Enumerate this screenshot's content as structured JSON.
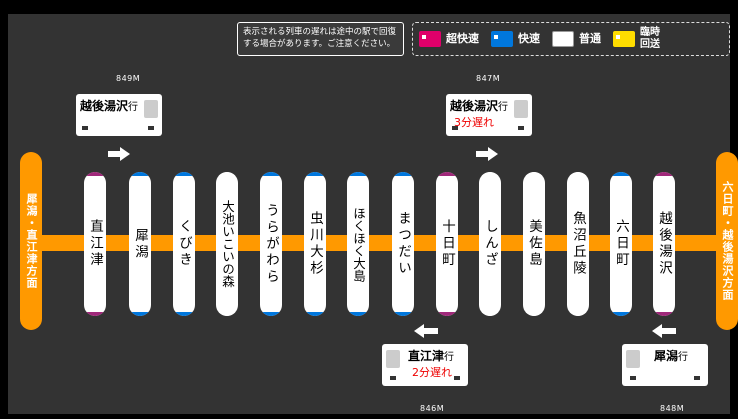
{
  "notice": {
    "text": "表示される列車の遅れは途中の駅で回復する場合があります。ご注意ください。"
  },
  "legend": {
    "items": [
      {
        "label": "超快速",
        "color": "#e0006a",
        "icon": "train-super-rapid-icon"
      },
      {
        "label": "快速",
        "color": "#0077dd",
        "icon": "train-rapid-icon"
      },
      {
        "label": "普通",
        "color": "#ffffff",
        "icon": "train-local-icon"
      },
      {
        "label": "臨時回送",
        "color": "#ffdd00",
        "icon": "train-deadhead-icon"
      }
    ]
  },
  "ends": {
    "left": "犀潟・直江津方面",
    "right": "六日町・越後湯沢方面"
  },
  "stations": [
    {
      "name": "直江津",
      "cap": "#a0287a"
    },
    {
      "name": "犀潟",
      "cap": "#0077dd"
    },
    {
      "name": "くびき",
      "cap": "#0077dd"
    },
    {
      "name": "大池いこいの森",
      "cap": "#ffffff"
    },
    {
      "name": "うらがわら",
      "cap": "#0077dd"
    },
    {
      "name": "虫川大杉",
      "cap": "#0077dd"
    },
    {
      "name": "ほくほく大島",
      "cap": "#0077dd"
    },
    {
      "name": "まつだい",
      "cap": "#0077dd"
    },
    {
      "name": "十日町",
      "cap": "#a0287a"
    },
    {
      "name": "しんざ",
      "cap": "#ffffff"
    },
    {
      "name": "美佐島",
      "cap": "#ffffff"
    },
    {
      "name": "魚沼丘陵",
      "cap": "#ffffff"
    },
    {
      "name": "六日町",
      "cap": "#0077dd"
    },
    {
      "name": "越後湯沢",
      "cap": "#a0287a"
    }
  ],
  "trains": {
    "t849": {
      "number": "849M",
      "dest": "越後湯沢",
      "suffix": "行",
      "delay": ""
    },
    "t847": {
      "number": "847M",
      "dest": "越後湯沢",
      "suffix": "行",
      "delay": "3分遅れ"
    },
    "t846": {
      "number": "846M",
      "dest": "直江津",
      "suffix": "行",
      "delay": "2分遅れ"
    },
    "t848": {
      "number": "848M",
      "dest": "犀潟",
      "suffix": "行",
      "delay": ""
    }
  },
  "colors": {
    "track": "#ff9900",
    "background": "#333333",
    "delay": "#e00000"
  }
}
